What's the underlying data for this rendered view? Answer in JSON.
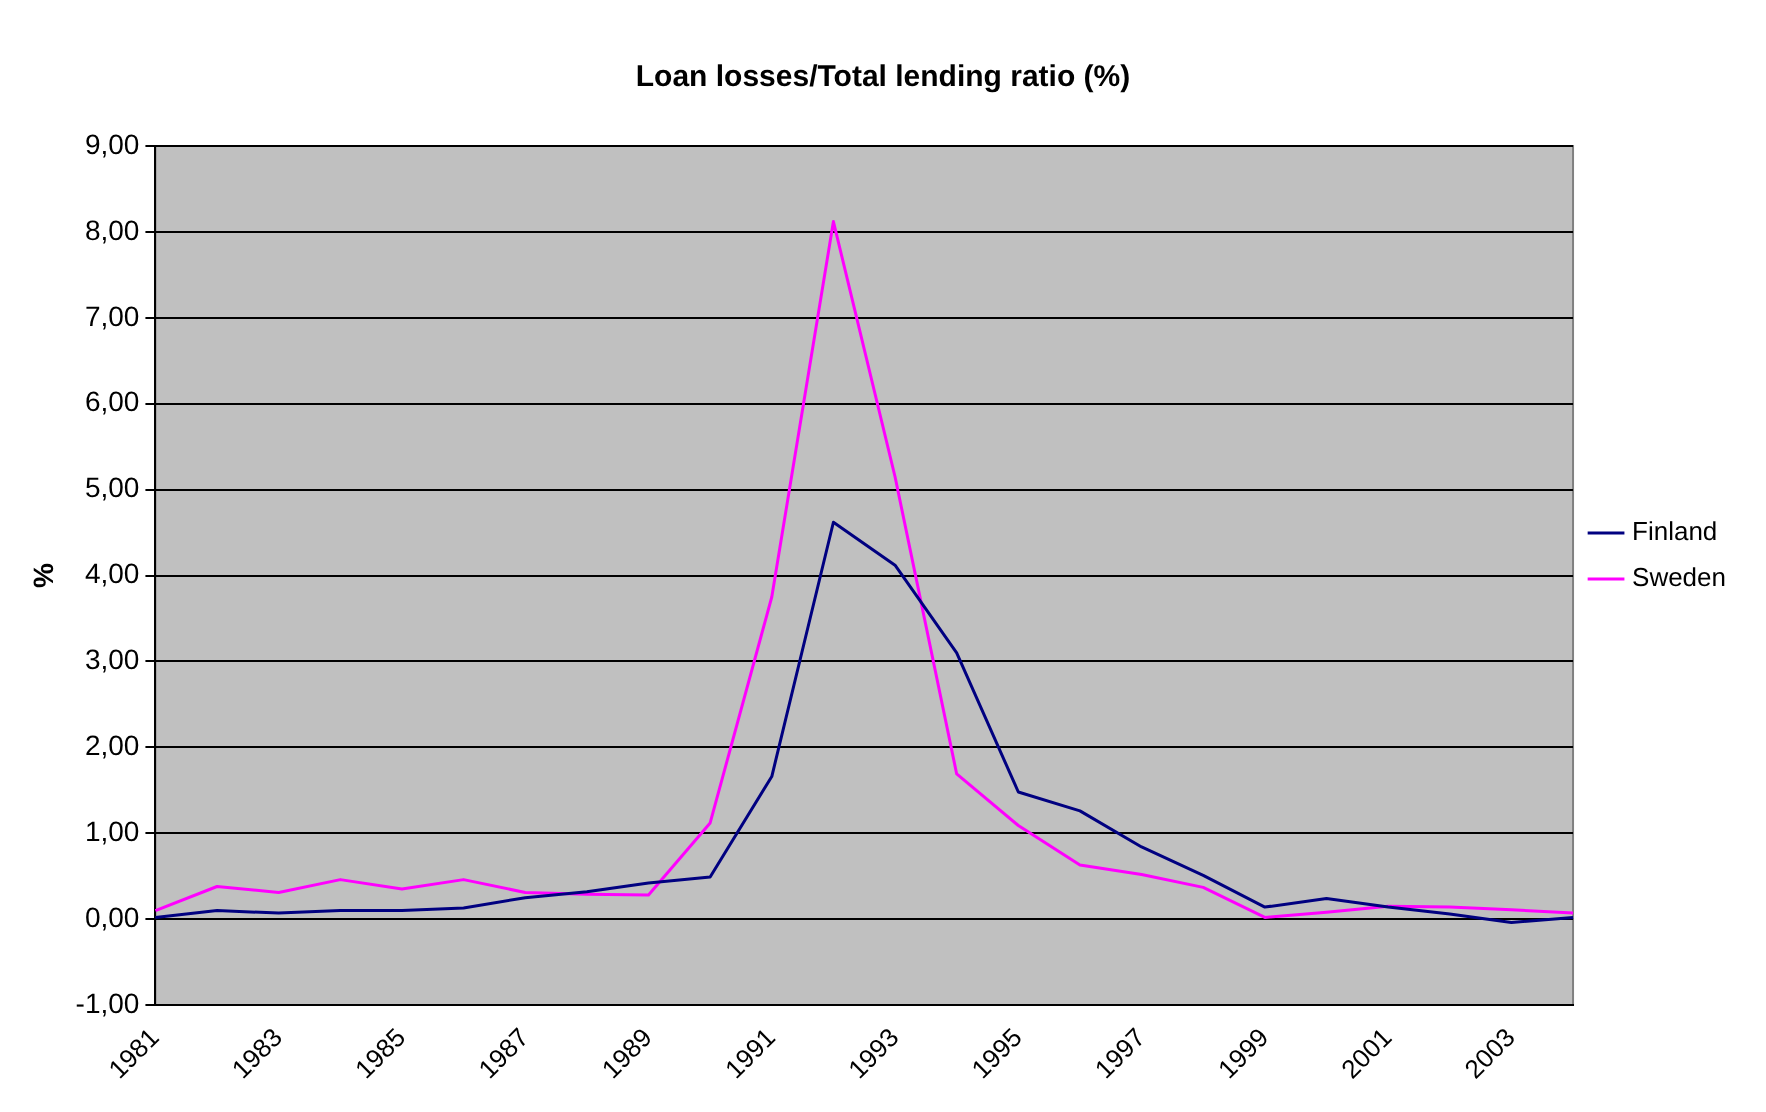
{
  "chart_data": {
    "type": "line",
    "title": "Loan losses/Total lending ratio (%)",
    "ylabel": "%",
    "categories": [
      "1981",
      null,
      "1983",
      null,
      "1985",
      null,
      "1987",
      null,
      "1989",
      null,
      "1991",
      null,
      "1993",
      null,
      "1995",
      null,
      "1997",
      null,
      "1999",
      null,
      "2001",
      null,
      "2003",
      null
    ],
    "series": [
      {
        "name": "Finland",
        "color": "#000080",
        "values": [
          0.02,
          0.1,
          0.07,
          0.1,
          0.1,
          0.13,
          0.25,
          0.32,
          0.42,
          0.49,
          1.66,
          4.62,
          4.12,
          3.1,
          1.48,
          1.26,
          0.84,
          0.51,
          0.14,
          0.24,
          0.14,
          0.06,
          -0.04,
          0.02
        ]
      },
      {
        "name": "Sweden",
        "color": "#ff00ff",
        "values": [
          0.1,
          0.38,
          0.31,
          0.46,
          0.35,
          0.46,
          0.31,
          0.29,
          0.28,
          1.12,
          3.75,
          8.12,
          5.15,
          1.69,
          1.09,
          0.63,
          0.52,
          0.37,
          0.02,
          0.08,
          0.15,
          0.14,
          0.11,
          0.07
        ]
      }
    ],
    "ylim": [
      -1,
      9
    ],
    "yticks": [
      {
        "value": -1,
        "label": "-1,00"
      },
      {
        "value": 0,
        "label": "0,00"
      },
      {
        "value": 1,
        "label": "1,00"
      },
      {
        "value": 2,
        "label": "2,00"
      },
      {
        "value": 3,
        "label": "3,00"
      },
      {
        "value": 4,
        "label": "4,00"
      },
      {
        "value": 5,
        "label": "5,00"
      },
      {
        "value": 6,
        "label": "6,00"
      },
      {
        "value": 7,
        "label": "7,00"
      },
      {
        "value": 8,
        "label": "8,00"
      },
      {
        "value": 9,
        "label": "9,00"
      }
    ],
    "grid": "y",
    "legend": "right",
    "marker": "none",
    "line_style": "solid"
  }
}
